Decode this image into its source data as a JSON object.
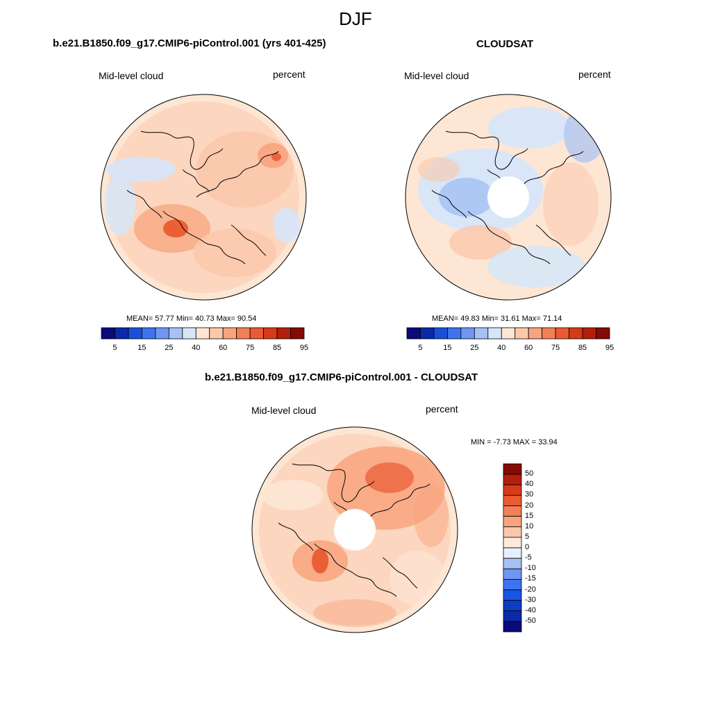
{
  "main_title": "DJF",
  "panels": [
    {
      "title": "b.e21.B1850.f09_g17.CMIP6-piControl.001 (yrs 401-425)",
      "left_label": "Mid-level cloud",
      "right_label": "percent",
      "stats": "MEAN=  57.77  Min=  40.73  Max=  90.54",
      "has_hole": false
    },
    {
      "title": "CLOUDSAT",
      "left_label": "Mid-level cloud",
      "right_label": "percent",
      "stats": "MEAN=  49.83  Min=  31.61  Max=  71.14",
      "has_hole": true
    },
    {
      "title": "b.e21.B1850.f09_g17.CMIP6-piControl.001 - CLOUDSAT",
      "left_label": "Mid-level cloud",
      "right_label": "percent",
      "stats": "MIN =  -7.73 MAX =  33.94",
      "has_hole": true
    }
  ],
  "colorbar_abs": {
    "colors": [
      "#0a0a7a",
      "#0b2aa8",
      "#1a4fd8",
      "#3f73ee",
      "#6f96f2",
      "#a6c2f5",
      "#d6e6f9",
      "#fde6d4",
      "#fbc8ab",
      "#f8a47e",
      "#f37f56",
      "#ea5b33",
      "#d63a18",
      "#b51d0c",
      "#860a05"
    ],
    "tick_labels": [
      "5",
      "15",
      "25",
      "40",
      "60",
      "75",
      "85",
      "95"
    ]
  },
  "colorbar_diff": {
    "colors": [
      "#0a0a7a",
      "#0b2aa8",
      "#0d3cc8",
      "#1a54e6",
      "#3f73ee",
      "#6f96f2",
      "#a6c2f5",
      "#e6effb",
      "#fdeadb",
      "#fbc8ab",
      "#f8a47e",
      "#f37f56",
      "#ea5b33",
      "#d63a18",
      "#b51d0c",
      "#860a05"
    ],
    "tick_labels": [
      "50",
      "40",
      "30",
      "20",
      "15",
      "10",
      "5",
      "0",
      "-5",
      "-10",
      "-15",
      "-20",
      "-30",
      "-40",
      "-50"
    ]
  },
  "colors": {
    "base_warm": "#fde6d4",
    "warm_mid": "#fbc8ab",
    "warm_strong": "#f8a47e",
    "warm_peak": "#ea5b33",
    "cool_light": "#d6e6f9",
    "cool_mid": "#a6c2f5"
  }
}
